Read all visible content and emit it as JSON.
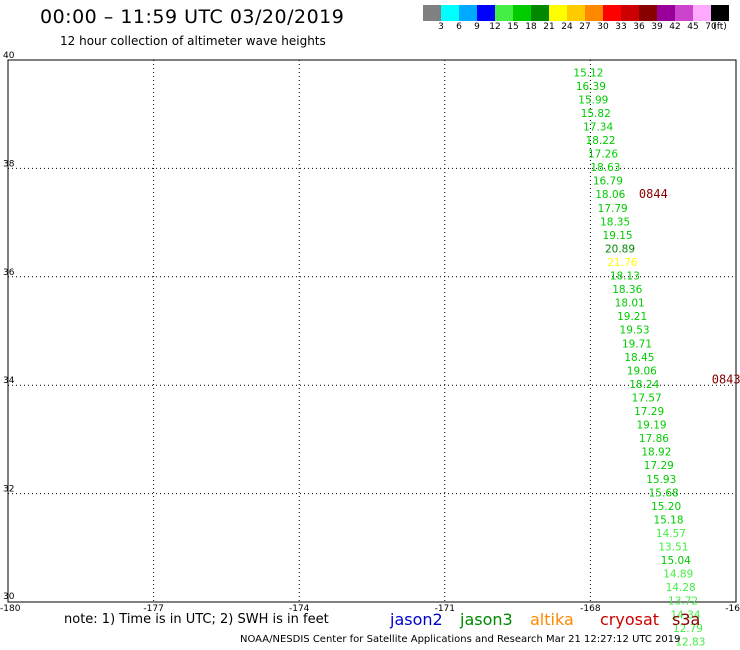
{
  "title": "00:00 – 11:59 UTC 03/20/2019",
  "subtitle": "12 hour collection of altimeter wave heights",
  "colorbar": {
    "colors": [
      "#808080",
      "#00ffff",
      "#00aaff",
      "#0000ff",
      "#44ee44",
      "#00cc00",
      "#008800",
      "#ffff00",
      "#ffcc00",
      "#ff8800",
      "#ff0000",
      "#cc0000",
      "#880000",
      "#990099",
      "#cc44cc",
      "#ffaaff",
      "#000000"
    ],
    "labels": [
      "3",
      "6",
      "9",
      "12",
      "15",
      "18",
      "21",
      "24",
      "27",
      "30",
      "33",
      "36",
      "39",
      "42",
      "45",
      "70",
      "(ft)"
    ]
  },
  "chart_data": {
    "type": "scatter",
    "xlabel": "",
    "ylabel": "",
    "xlim": [
      -180,
      -165
    ],
    "ylim": [
      30,
      40
    ],
    "x_ticks": [
      "-180",
      "-177",
      "-174",
      "-171",
      "-168",
      "-16"
    ],
    "y_ticks": [
      "40",
      "38",
      "36",
      "34",
      "32",
      "30"
    ],
    "grid": true,
    "time_labels": [
      {
        "text": "0844",
        "lon": -167.0,
        "lat": 37.45,
        "color": "#880000"
      },
      {
        "text": "0843",
        "lon": -165.5,
        "lat": 34.03,
        "color": "#880000"
      }
    ],
    "points": [
      {
        "text": "15.12",
        "lon": -168.35,
        "lat": 39.7,
        "color": "#00cc00"
      },
      {
        "text": "16.39",
        "lon": -168.3,
        "lat": 39.45,
        "color": "#00cc00"
      },
      {
        "text": "15.99",
        "lon": -168.25,
        "lat": 39.2,
        "color": "#00cc00"
      },
      {
        "text": "15.82",
        "lon": -168.2,
        "lat": 38.95,
        "color": "#00cc00"
      },
      {
        "text": "17.34",
        "lon": -168.15,
        "lat": 38.7,
        "color": "#00cc00"
      },
      {
        "text": "18.22",
        "lon": -168.1,
        "lat": 38.45,
        "color": "#00cc00"
      },
      {
        "text": "17.26",
        "lon": -168.05,
        "lat": 38.2,
        "color": "#00cc00"
      },
      {
        "text": "18.63",
        "lon": -168.0,
        "lat": 37.95,
        "color": "#00cc00"
      },
      {
        "text": "16.79",
        "lon": -167.95,
        "lat": 37.7,
        "color": "#00cc00"
      },
      {
        "text": "18.06",
        "lon": -167.9,
        "lat": 37.45,
        "color": "#00cc00"
      },
      {
        "text": "17.79",
        "lon": -167.85,
        "lat": 37.2,
        "color": "#00cc00"
      },
      {
        "text": "18.35",
        "lon": -167.8,
        "lat": 36.95,
        "color": "#00cc00"
      },
      {
        "text": "19.15",
        "lon": -167.75,
        "lat": 36.7,
        "color": "#00cc00"
      },
      {
        "text": "20.89",
        "lon": -167.7,
        "lat": 36.45,
        "color": "#008800"
      },
      {
        "text": "21.76",
        "lon": -167.65,
        "lat": 36.2,
        "color": "#ffff00"
      },
      {
        "text": "18.13",
        "lon": -167.6,
        "lat": 35.95,
        "color": "#00cc00"
      },
      {
        "text": "18.36",
        "lon": -167.55,
        "lat": 35.7,
        "color": "#00cc00"
      },
      {
        "text": "18.01",
        "lon": -167.5,
        "lat": 35.45,
        "color": "#00cc00"
      },
      {
        "text": "19.21",
        "lon": -167.45,
        "lat": 35.2,
        "color": "#00cc00"
      },
      {
        "text": "19.53",
        "lon": -167.4,
        "lat": 34.95,
        "color": "#00cc00"
      },
      {
        "text": "19.71",
        "lon": -167.35,
        "lat": 34.7,
        "color": "#00cc00"
      },
      {
        "text": "18.45",
        "lon": -167.3,
        "lat": 34.45,
        "color": "#00cc00"
      },
      {
        "text": "19.06",
        "lon": -167.25,
        "lat": 34.2,
        "color": "#00cc00"
      },
      {
        "text": "18.24",
        "lon": -167.2,
        "lat": 33.95,
        "color": "#00cc00"
      },
      {
        "text": "17.57",
        "lon": -167.15,
        "lat": 33.7,
        "color": "#00cc00"
      },
      {
        "text": "17.29",
        "lon": -167.1,
        "lat": 33.45,
        "color": "#00cc00"
      },
      {
        "text": "19.19",
        "lon": -167.05,
        "lat": 33.2,
        "color": "#00cc00"
      },
      {
        "text": "17.86",
        "lon": -167.0,
        "lat": 32.95,
        "color": "#00cc00"
      },
      {
        "text": "18.92",
        "lon": -166.95,
        "lat": 32.7,
        "color": "#00cc00"
      },
      {
        "text": "17.29",
        "lon": -166.9,
        "lat": 32.45,
        "color": "#00cc00"
      },
      {
        "text": "15.93",
        "lon": -166.85,
        "lat": 32.2,
        "color": "#00cc00"
      },
      {
        "text": "15.68",
        "lon": -166.8,
        "lat": 31.95,
        "color": "#00cc00"
      },
      {
        "text": "15.20",
        "lon": -166.75,
        "lat": 31.7,
        "color": "#00cc00"
      },
      {
        "text": "15.18",
        "lon": -166.7,
        "lat": 31.45,
        "color": "#00cc00"
      },
      {
        "text": "14.57",
        "lon": -166.65,
        "lat": 31.2,
        "color": "#44ee44"
      },
      {
        "text": "13.51",
        "lon": -166.6,
        "lat": 30.95,
        "color": "#44ee44"
      },
      {
        "text": "15.04",
        "lon": -166.55,
        "lat": 30.7,
        "color": "#00cc00"
      },
      {
        "text": "14.89",
        "lon": -166.5,
        "lat": 30.45,
        "color": "#44ee44"
      },
      {
        "text": "14.28",
        "lon": -166.45,
        "lat": 30.2,
        "color": "#44ee44"
      },
      {
        "text": "13.72",
        "lon": -166.4,
        "lat": 29.95,
        "color": "#44ee44"
      },
      {
        "text": "14.34",
        "lon": -166.35,
        "lat": 29.7,
        "color": "#44ee44"
      },
      {
        "text": "12.79",
        "lon": -166.3,
        "lat": 29.45,
        "color": "#44ee44"
      },
      {
        "text": "12.83",
        "lon": -166.25,
        "lat": 29.2,
        "color": "#44ee44"
      }
    ]
  },
  "footer": {
    "note": "note: 1) Time is in UTC; 2) SWH is in feet",
    "satellites": [
      {
        "name": "jason2",
        "color": "#0000cc"
      },
      {
        "name": "jason3",
        "color": "#008800"
      },
      {
        "name": "altika",
        "color": "#ff8800"
      },
      {
        "name": "cryosat",
        "color": "#cc0000"
      },
      {
        "name": "s3a",
        "color": "#880000"
      }
    ],
    "credit": "NOAA/NESDIS Center for Satellite Applications and Research    Mar 21 12:27:12 UTC 2019"
  }
}
